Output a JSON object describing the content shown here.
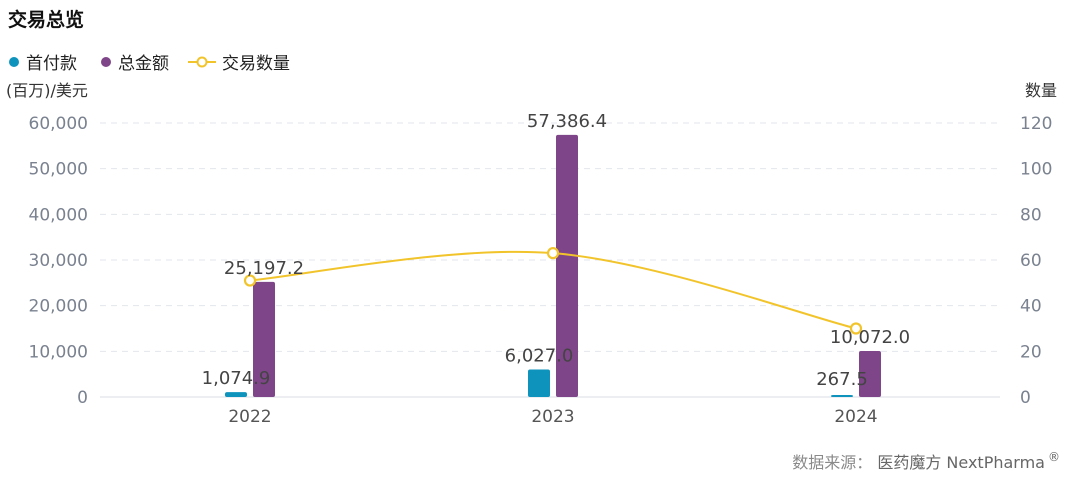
{
  "chart_data": {
    "type": "bar",
    "title": "交易总览",
    "categories": [
      "2022",
      "2023",
      "2024"
    ],
    "series": [
      {
        "name": "首付款",
        "kind": "bar",
        "axis": "left",
        "values": [
          1074.9,
          6027.0,
          267.5
        ],
        "labels": [
          "1,074.9",
          "6,027.0",
          "267.5"
        ]
      },
      {
        "name": "总金额",
        "kind": "bar",
        "axis": "left",
        "values": [
          25197.2,
          57386.4,
          10072.0
        ],
        "labels": [
          "25,197.2",
          "57,386.4",
          "10,072.0"
        ]
      },
      {
        "name": "交易数量",
        "kind": "line",
        "axis": "right",
        "values": [
          51,
          63,
          30
        ]
      }
    ],
    "y_left": {
      "label": "(百万)/美元",
      "ylim": [
        0,
        60000
      ],
      "ticks": [
        0,
        10000,
        20000,
        30000,
        40000,
        50000,
        60000
      ],
      "tick_labels": [
        "0",
        "10,000",
        "20,000",
        "30,000",
        "40,000",
        "50,000",
        "60,000"
      ]
    },
    "y_right": {
      "label": "数量",
      "ylim": [
        0,
        120
      ],
      "ticks": [
        0,
        20,
        40,
        60,
        80,
        100,
        120
      ],
      "tick_labels": [
        "0",
        "20",
        "40",
        "60",
        "80",
        "100",
        "120"
      ]
    },
    "grid": true,
    "legend": "top-left",
    "colors": {
      "首付款": "#0E93BD",
      "总金额": "#7E4588",
      "交易数量": "#F2C42C",
      "grid": "#e3e6ec",
      "axis_text": "#7a8290"
    }
  },
  "source": {
    "prefix": "数据来源：",
    "brand": "医药魔方 NextPharma",
    "mark": "®"
  }
}
